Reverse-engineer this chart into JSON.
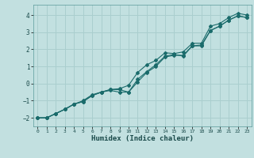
{
  "xlabel": "Humidex (Indice chaleur)",
  "xlim": [
    -0.5,
    23.5
  ],
  "ylim": [
    -2.5,
    4.6
  ],
  "yticks": [
    -2,
    -1,
    0,
    1,
    2,
    3,
    4
  ],
  "xticks": [
    0,
    1,
    2,
    3,
    4,
    5,
    6,
    7,
    8,
    9,
    10,
    11,
    12,
    13,
    14,
    15,
    16,
    17,
    18,
    19,
    20,
    21,
    22,
    23
  ],
  "bg_color": "#c2e0e0",
  "grid_color": "#aacece",
  "line_color": "#1a6b6b",
  "line1_x": [
    0,
    1,
    2,
    3,
    4,
    5,
    6,
    7,
    8,
    9,
    10,
    11,
    12,
    13,
    14,
    15,
    16,
    17,
    18,
    19,
    20,
    21,
    22,
    23
  ],
  "line1_y": [
    -2.0,
    -2.0,
    -1.75,
    -1.5,
    -1.2,
    -1.05,
    -0.7,
    -0.5,
    -0.35,
    -0.3,
    -0.1,
    0.65,
    1.1,
    1.35,
    1.8,
    1.75,
    1.85,
    2.35,
    2.35,
    3.35,
    3.5,
    3.85,
    4.1,
    4.0
  ],
  "line2_x": [
    0,
    1,
    2,
    3,
    4,
    5,
    6,
    7,
    8,
    9,
    10,
    11,
    12,
    13,
    14,
    15,
    16,
    17,
    18,
    19,
    20,
    21,
    22,
    23
  ],
  "line2_y": [
    -2.0,
    -2.0,
    -1.75,
    -1.5,
    -1.2,
    -1.0,
    -0.65,
    -0.5,
    -0.4,
    -0.5,
    -0.5,
    0.1,
    0.65,
    1.0,
    1.55,
    1.65,
    1.65,
    2.2,
    2.2,
    3.1,
    3.35,
    3.7,
    3.95,
    3.85
  ],
  "line3_x": [
    0,
    1,
    2,
    3,
    4,
    5,
    6,
    7,
    8,
    9,
    10,
    11,
    12,
    13,
    14,
    15,
    16,
    17,
    18,
    19,
    20,
    21,
    22,
    23
  ],
  "line3_y": [
    -2.0,
    -2.0,
    -1.75,
    -1.5,
    -1.2,
    -1.05,
    -0.7,
    -0.5,
    -0.35,
    -0.35,
    -0.5,
    0.25,
    0.7,
    1.1,
    1.6,
    1.7,
    1.6,
    2.2,
    2.25,
    3.1,
    3.35,
    3.7,
    3.95,
    3.85
  ]
}
